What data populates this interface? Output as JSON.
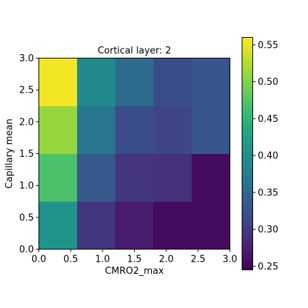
{
  "chart_data": {
    "type": "heatmap",
    "title": "Cortical layer: 2",
    "xlabel": "CMRO2_max",
    "ylabel": "Capillary mean",
    "xlim": [
      0.0,
      3.0
    ],
    "ylim": [
      0.0,
      3.0
    ],
    "x_ticks": [
      "0.0",
      "0.5",
      "1.0",
      "1.5",
      "2.0",
      "2.5",
      "3.0"
    ],
    "y_ticks": [
      "0.0",
      "0.5",
      "1.0",
      "1.5",
      "2.0",
      "2.5",
      "3.0"
    ],
    "x_bins": [
      0.0,
      0.6,
      1.2,
      1.8,
      2.4,
      3.0
    ],
    "y_bins": [
      0.0,
      0.75,
      1.5,
      2.25,
      3.0
    ],
    "rows_bottom_to_top": [
      [
        0.41,
        0.295,
        0.27,
        0.255,
        0.255
      ],
      [
        0.47,
        0.335,
        0.295,
        0.29,
        0.255
      ],
      [
        0.51,
        0.37,
        0.32,
        0.31,
        0.33
      ],
      [
        0.555,
        0.395,
        0.355,
        0.32,
        0.33
      ]
    ],
    "colorbar": {
      "colormap": "viridis",
      "vmin": 0.245,
      "vmax": 0.56,
      "ticks": [
        "0.25",
        "0.30",
        "0.35",
        "0.40",
        "0.45",
        "0.50",
        "0.55"
      ],
      "tick_values": [
        0.25,
        0.3,
        0.35,
        0.4,
        0.45,
        0.5,
        0.55
      ]
    },
    "grid": false
  }
}
